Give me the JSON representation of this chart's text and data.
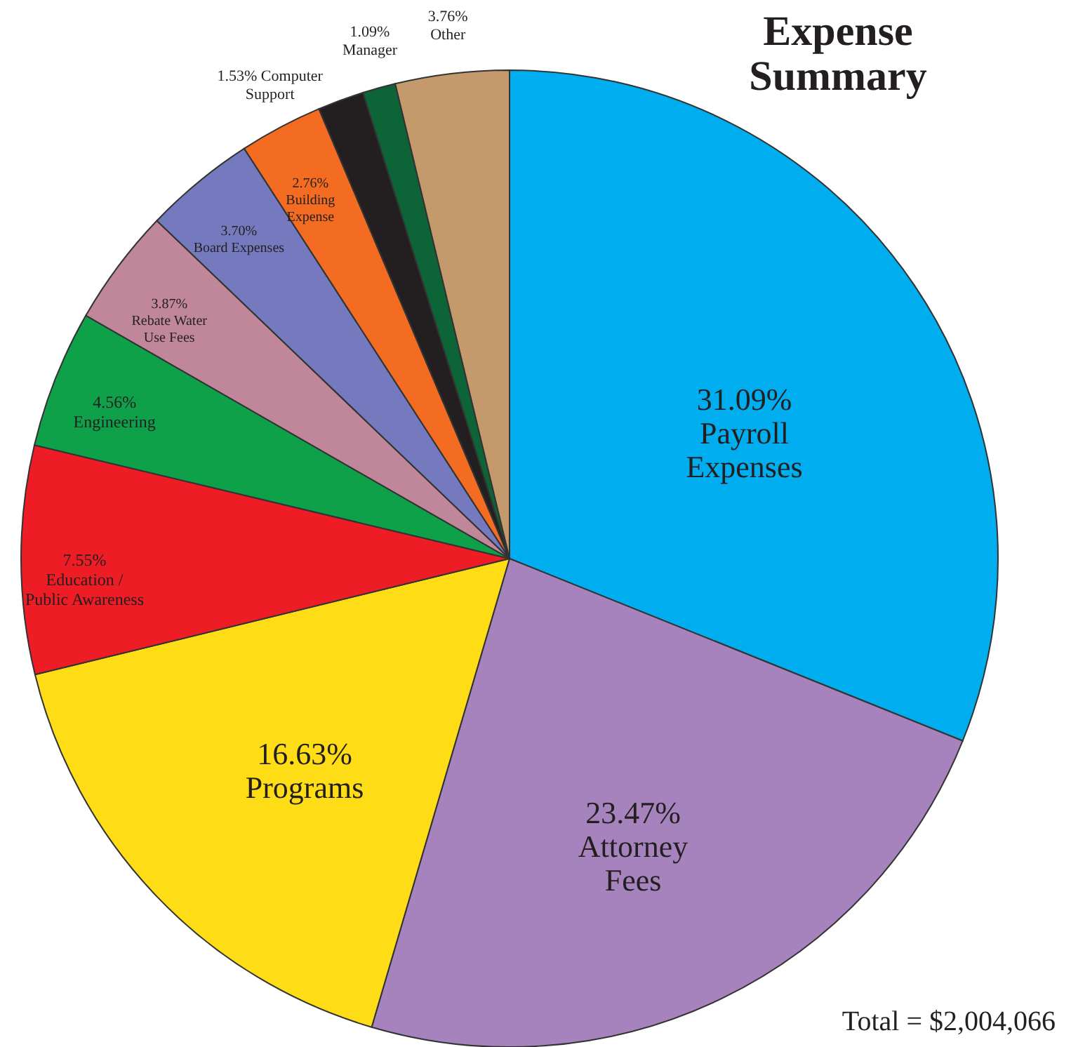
{
  "chart_data": {
    "type": "pie",
    "title": "Expense\nSummary",
    "categories": [
      "Payroll\nExpenses",
      "Attorney\nFees",
      "Programs",
      "Education /\nPublic Awareness",
      "Engineering",
      "Rebate Water\nUse Fees",
      "Board Expenses",
      "Building\nExpense",
      "Computer\nSupport",
      "Manager",
      "Other"
    ],
    "values": [
      31.09,
      23.47,
      16.63,
      7.55,
      4.56,
      3.87,
      3.7,
      2.76,
      1.53,
      1.09,
      3.76
    ],
    "colors": [
      "#00adef",
      "#a683bd",
      "#fedd17",
      "#ee1c25",
      "#0fa14a",
      "#c0869a",
      "#7579bd",
      "#f36c21",
      "#231f20",
      "#0d6437",
      "#c49a6c"
    ],
    "value_labels": [
      "31.09%",
      "23.47%",
      "16.63%",
      "7.55%",
      "4.56%",
      "3.87%",
      "3.70%",
      "2.76%",
      "1.53%",
      "1.09%",
      "3.76%"
    ],
    "annotations": [
      "Total = $2,004,066"
    ]
  }
}
